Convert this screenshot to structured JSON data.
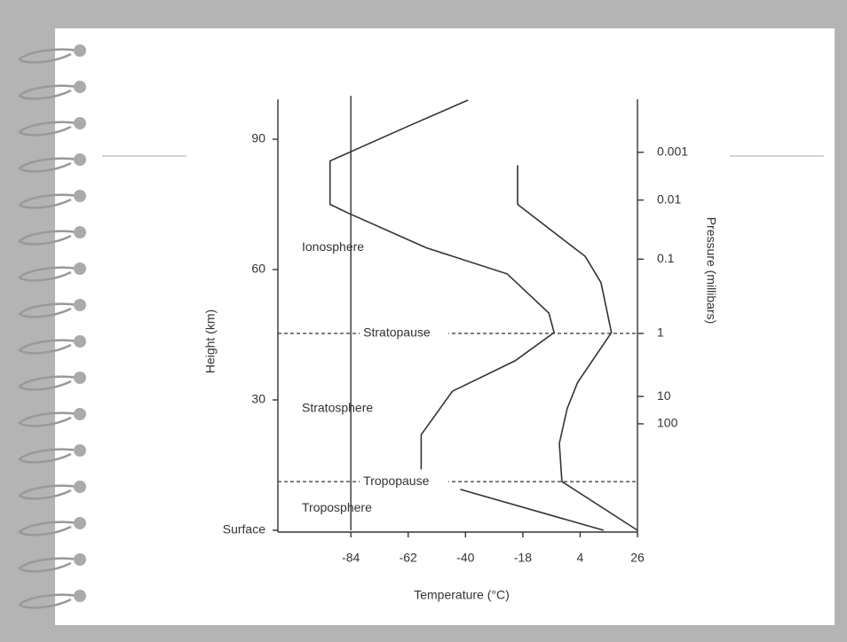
{
  "chart_data": {
    "type": "line",
    "x_label": "Temperature (°C)",
    "y_label": "Height (km)",
    "y2_label": "Pressure (millibars)",
    "xlim": [
      -112,
      26
    ],
    "xticks": [
      -84,
      -62,
      -40,
      -18,
      4,
      26
    ],
    "ylim": [
      0,
      100
    ],
    "yticks": [
      {
        "value": 0,
        "label": "Surface"
      },
      30,
      60,
      90
    ],
    "pressure_levels": [
      {
        "label": "0.001",
        "height": 87
      },
      {
        "label": "0.01",
        "height": 76
      },
      {
        "label": "0.1",
        "height": 62.4
      },
      {
        "label": "1",
        "height": 45.3
      },
      {
        "label": "10",
        "height": 30.8
      },
      {
        "label": "100",
        "height": 24.5
      }
    ],
    "boundaries": [
      {
        "label": "Stratopause",
        "height": 45.3
      },
      {
        "label": "Tropopause",
        "height": 11.2
      }
    ],
    "layers": [
      {
        "label": "Ionosphere",
        "height": 65
      },
      {
        "label": "Stratosphere",
        "height": 28
      },
      {
        "label": "Troposphere",
        "height": 5
      }
    ],
    "reference_temperature": -84,
    "series": [
      {
        "color": "#333333",
        "x": [
          -39,
          -62,
          -92,
          -92,
          -85,
          -55,
          -24,
          -8,
          -6,
          -21,
          -45,
          -57,
          -57,
          null,
          -42,
          13
        ],
        "values": [
          99,
          93,
          85,
          75,
          73,
          65,
          59,
          50,
          45.5,
          39,
          32,
          22,
          14,
          null,
          9.4,
          0
        ]
      },
      {
        "color": "#333333",
        "x": [
          -20,
          -20,
          6,
          12,
          16,
          3,
          -1,
          -4,
          -3,
          26
        ],
        "values": [
          84,
          75,
          63,
          57,
          45.5,
          34,
          28,
          20,
          11.2,
          0
        ]
      }
    ]
  }
}
